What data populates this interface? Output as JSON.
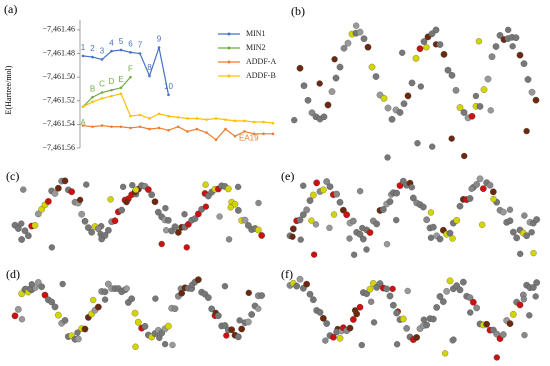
{
  "chart_data": {
    "type": "line",
    "panel_label": "(a)",
    "ylabel": "E(Hartree/mol)",
    "categories": [
      null,
      null,
      null,
      null,
      null,
      null,
      null,
      null,
      null,
      null,
      null,
      null,
      null,
      null,
      null,
      null,
      null,
      null,
      null,
      null,
      null
    ],
    "ylim": [
      -7461.56,
      -7461.455
    ],
    "yticks": [
      {
        "value": -7461.46,
        "label": "−7,461.46"
      },
      {
        "value": -7461.48,
        "label": "−7,461.48"
      },
      {
        "value": -7461.5,
        "label": "−7,461.50"
      },
      {
        "value": -7461.52,
        "label": "−7,461.52"
      },
      {
        "value": -7461.54,
        "label": "−7,461.54"
      },
      {
        "value": -7461.56,
        "label": "−7,461.56"
      }
    ],
    "legend": "upper right",
    "series": [
      {
        "name": "MIN1",
        "color": "#4472c4",
        "values": [
          -7461.482,
          -7461.483,
          -7461.485,
          -7461.478,
          -7461.477,
          -7461.479,
          -7461.48,
          -7461.499,
          -7461.475,
          -7461.515,
          null,
          null,
          null,
          null,
          null,
          null,
          null,
          null,
          null,
          null,
          null
        ],
        "point_labels": [
          "1",
          "2",
          "3",
          "4",
          "5",
          "6",
          "7",
          "8",
          "9",
          "10",
          null,
          null,
          null,
          null,
          null,
          null,
          null,
          null,
          null,
          null,
          null
        ]
      },
      {
        "name": "MIN2",
        "color": "#70ad47",
        "values": [
          -7461.525,
          -7461.517,
          -7461.513,
          -7461.511,
          -7461.509,
          -7461.5,
          null,
          null,
          null,
          null,
          null,
          null,
          null,
          null,
          null,
          null,
          null,
          null,
          null,
          null,
          null
        ],
        "point_labels": [
          "A",
          "B",
          "C",
          "D",
          "E",
          "F",
          null,
          null,
          null,
          null,
          null,
          null,
          null,
          null,
          null,
          null,
          null,
          null,
          null,
          null,
          null
        ]
      },
      {
        "name": "ADDF-A",
        "color": "#ed7d31",
        "values": [
          -7461.541,
          -7461.542,
          -7461.541,
          -7461.542,
          -7461.542,
          -7461.543,
          -7461.542,
          -7461.544,
          -7461.543,
          -7461.545,
          -7461.542,
          -7461.546,
          -7461.544,
          -7461.547,
          -7461.553,
          -7461.544,
          -7461.55,
          -7461.546,
          -7461.548,
          -7461.548,
          -7461.548
        ],
        "point_labels": [
          null,
          null,
          null,
          null,
          null,
          null,
          null,
          null,
          null,
          null,
          null,
          null,
          null,
          null,
          null,
          null,
          "EA19",
          null,
          null,
          null,
          null
        ]
      },
      {
        "name": "ADDF-B",
        "color": "#ffc000",
        "values": [
          -7461.525,
          -7461.521,
          -7461.518,
          -7461.516,
          -7461.514,
          -7461.533,
          -7461.532,
          -7461.535,
          -7461.531,
          -7461.533,
          -7461.534,
          -7461.535,
          -7461.535,
          -7461.536,
          -7461.535,
          -7461.536,
          -7461.537,
          -7461.537,
          -7461.538,
          -7461.538,
          -7461.539
        ]
      }
    ]
  },
  "panels": [
    {
      "label": "(b)"
    },
    {
      "label": "(c)"
    },
    {
      "label": "(e)"
    },
    {
      "label": "(d)"
    },
    {
      "label": "(f)"
    }
  ]
}
